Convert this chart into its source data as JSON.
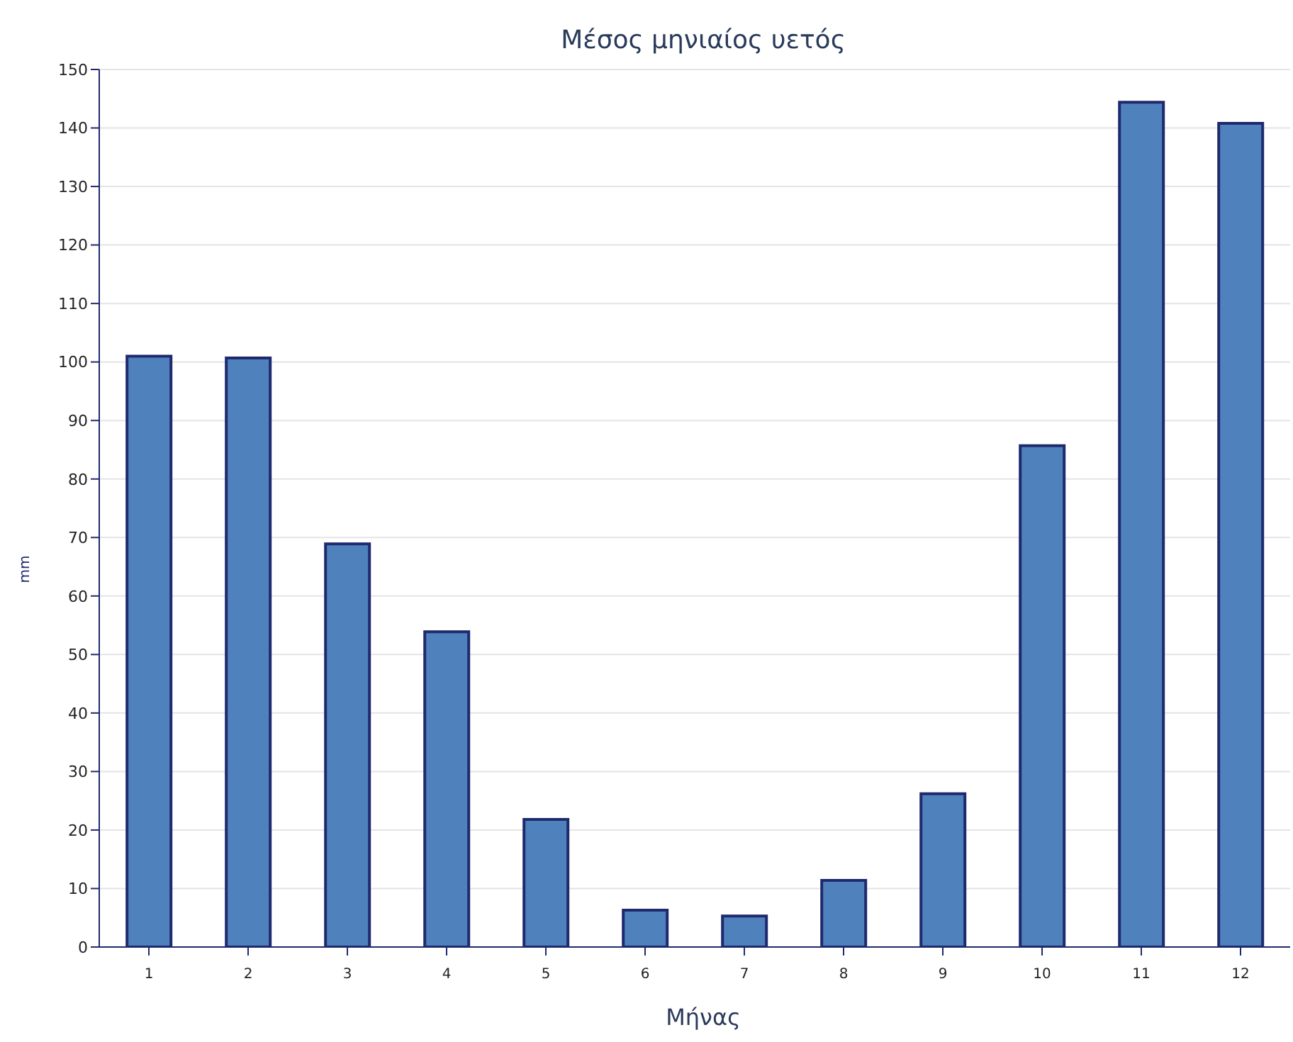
{
  "chart_data": {
    "type": "bar",
    "title": "Μέσος μηνιαίος υετός",
    "xlabel": "Μήνας",
    "ylabel": "mm",
    "categories": [
      "1",
      "2",
      "3",
      "4",
      "5",
      "6",
      "7",
      "8",
      "9",
      "10",
      "11",
      "12"
    ],
    "values": [
      101,
      100.7,
      68.9,
      53.9,
      21.8,
      6.3,
      5.3,
      11.4,
      26.2,
      85.7,
      144.4,
      140.8
    ],
    "color": "#4f81bd",
    "ylim": [
      0,
      150
    ],
    "yticks": [
      0,
      10,
      20,
      30,
      40,
      50,
      60,
      70,
      80,
      90,
      100,
      110,
      120,
      130,
      140,
      150
    ],
    "grid": "y"
  }
}
